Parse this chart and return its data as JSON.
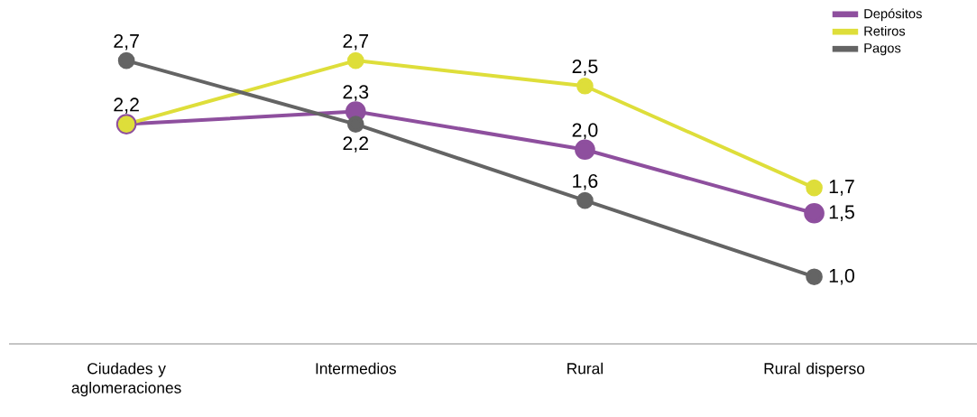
{
  "chart_data": {
    "type": "line",
    "categories": [
      "Ciudades y aglomeraciones",
      "Intermedios",
      "Rural",
      "Rural disperso"
    ],
    "series": [
      {
        "name": "Depósitos",
        "color": "#8e4f9e",
        "values": [
          2.2,
          2.3,
          2.0,
          1.5
        ],
        "value_labels": [
          null,
          "2,3",
          "2,0",
          "1,5"
        ]
      },
      {
        "name": "Retiros",
        "color": "#dede3a",
        "values": [
          2.2,
          2.7,
          2.5,
          1.7
        ],
        "value_labels": [
          "2,2",
          "2,7",
          "2,5",
          "1,7"
        ]
      },
      {
        "name": "Pagos",
        "color": "#646464",
        "values": [
          2.7,
          2.2,
          1.6,
          1.0
        ],
        "value_labels": [
          "2,7",
          "2,2",
          "1,6",
          "1,0"
        ]
      }
    ],
    "legend": "top right",
    "marker": "circle",
    "line_style": "solid"
  }
}
